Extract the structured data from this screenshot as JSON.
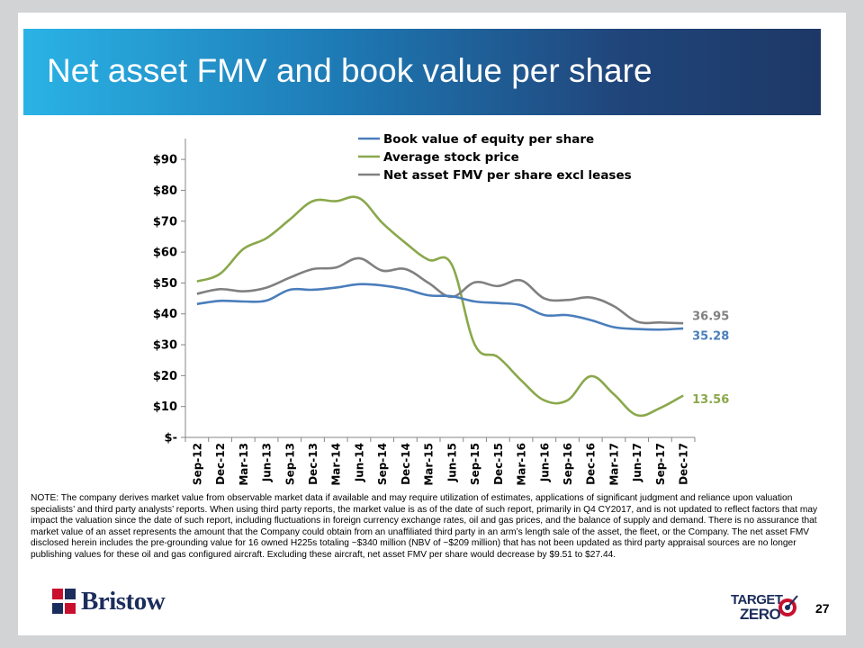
{
  "title": "Net asset FMV and book value per share",
  "page_number": "27",
  "note": "NOTE: The company derives market value from observable market data if available and may require utilization of estimates, applications of significant judgment and reliance upon valuation specialists’ and third party analysts’ reports.  When using third party reports, the market value is as of the date of such report, primarily in Q4 CY2017, and is not updated to reflect factors that may impact the valuation since the date of such report, including fluctuations in foreign currency exchange rates, oil and gas prices, and the balance of supply and demand.  There is no assurance that market value of an asset represents the amount that the Company could obtain from an unaffiliated third party in an arm’s length sale of the asset, the fleet, or the Company. The net asset FMV disclosed herein includes the pre-grounding value for 16 owned H225s totaling ~$340 million (NBV of ~$209 million) that has not been updated as third party appraisal sources are no longer publishing values for these oil and gas configured aircraft.  Excluding these aircraft, net asset FMV per share would decrease by $9.51 to $27.44.",
  "logo": {
    "company": "Bristow",
    "tz_line1": "TARGET",
    "tz_line2": "ZERO"
  },
  "chart_data": {
    "type": "line",
    "categories": [
      "Sep-12",
      "Dec-12",
      "Mar-13",
      "Jun-13",
      "Sep-13",
      "Dec-13",
      "Mar-14",
      "Jun-14",
      "Sep-14",
      "Dec-14",
      "Mar-15",
      "Jun-15",
      "Sep-15",
      "Dec-15",
      "Mar-16",
      "Jun-16",
      "Sep-16",
      "Dec-16",
      "Mar-17",
      "Jun-17",
      "Sep-17",
      "Dec-17"
    ],
    "y_ticks": [
      0,
      10,
      20,
      30,
      40,
      50,
      60,
      70,
      80,
      90
    ],
    "y_tick_labels": [
      "$-",
      "$10",
      "$20",
      "$30",
      "$40",
      "$50",
      "$60",
      "$70",
      "$80",
      "$90"
    ],
    "ylim": [
      0,
      95
    ],
    "grid": false,
    "legend_position": "top",
    "series": [
      {
        "name": "Book value of equity per share",
        "color": "#4a7ebb",
        "values": [
          43.2,
          44.2,
          44.0,
          44.3,
          47.8,
          47.8,
          48.5,
          49.6,
          49.2,
          48.0,
          46.0,
          45.7,
          44.0,
          43.5,
          42.8,
          39.6,
          39.6,
          38.0,
          35.7,
          35.1,
          34.9,
          35.28
        ],
        "end_label": "35.28"
      },
      {
        "name": "Average stock price",
        "color": "#8aa84b",
        "values": [
          50.5,
          53.0,
          61.0,
          64.5,
          70.5,
          76.5,
          76.5,
          77.5,
          69.5,
          63.0,
          57.5,
          56.0,
          30.0,
          26.0,
          18.5,
          12.0,
          12.0,
          19.8,
          14.0,
          7.2,
          9.5,
          13.56
        ],
        "end_label": "13.56"
      },
      {
        "name": "Net asset FMV per share excl leases",
        "color": "#808080",
        "values": [
          46.5,
          48.0,
          47.3,
          48.5,
          51.7,
          54.5,
          55.0,
          58.0,
          54.0,
          54.5,
          50.0,
          45.5,
          50.2,
          49.0,
          50.8,
          45.0,
          44.5,
          45.3,
          42.5,
          37.5,
          37.2,
          36.95
        ],
        "end_label": "36.95"
      }
    ]
  }
}
